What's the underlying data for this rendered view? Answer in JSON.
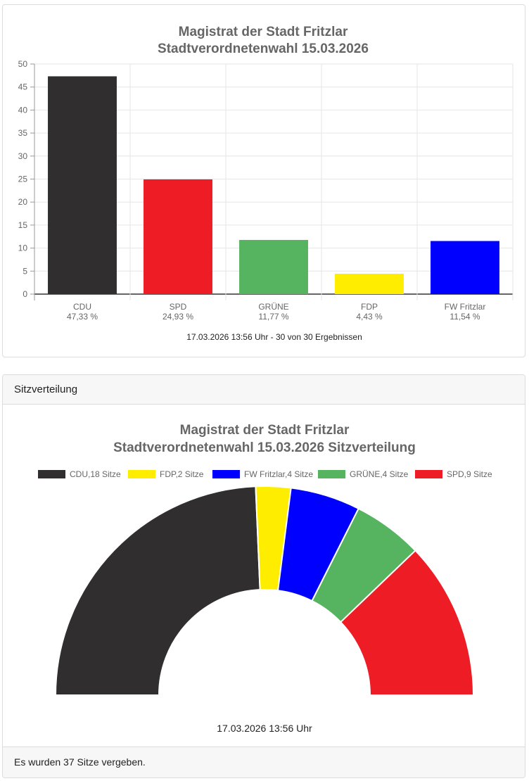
{
  "chart_data": [
    {
      "type": "bar",
      "title": [
        "Magistrat der Stadt Fritzlar",
        "Stadtverordnetenwahl 15.03.2026"
      ],
      "categories": [
        "CDU",
        "SPD",
        "GRÜNE",
        "FDP",
        "FW Fritzlar"
      ],
      "category_sublabels": [
        "47,33 %",
        "24,93 %",
        "11,77 %",
        "4,43 %",
        "11,54 %"
      ],
      "values": [
        47.33,
        24.93,
        11.77,
        4.43,
        11.54
      ],
      "colors": [
        "#302e2f",
        "#ee1c25",
        "#56b35f",
        "#ffed00",
        "#0000ff"
      ],
      "ylim": [
        0,
        50
      ],
      "yticks": [
        0,
        5,
        10,
        15,
        20,
        25,
        30,
        35,
        40,
        45,
        50
      ],
      "grid": true,
      "legend": "none",
      "footnote": "17.03.2026 13:56 Uhr - 30 von 30 Ergebnissen"
    },
    {
      "type": "pie",
      "variant": "half-doughnut",
      "title": [
        "Magistrat der Stadt Fritzlar",
        "Stadtverordnetenwahl 15.03.2026 Sitzverteilung"
      ],
      "labels": [
        "CDU,18 Sitze",
        "FDP,2 Sitze",
        "FW Fritzlar,4 Sitze",
        "GRÜNE,4 Sitze",
        "SPD,9 Sitze"
      ],
      "values": [
        18,
        2,
        4,
        4,
        9
      ],
      "colors": [
        "#302e2f",
        "#ffed00",
        "#0000ff",
        "#56b35f",
        "#ee1c25"
      ],
      "legend": "top",
      "footnote": "17.03.2026 13:56 Uhr"
    }
  ],
  "seat_card": {
    "header": "Sitzverteilung",
    "footer": "Es wurden 37 Sitze vergeben."
  }
}
